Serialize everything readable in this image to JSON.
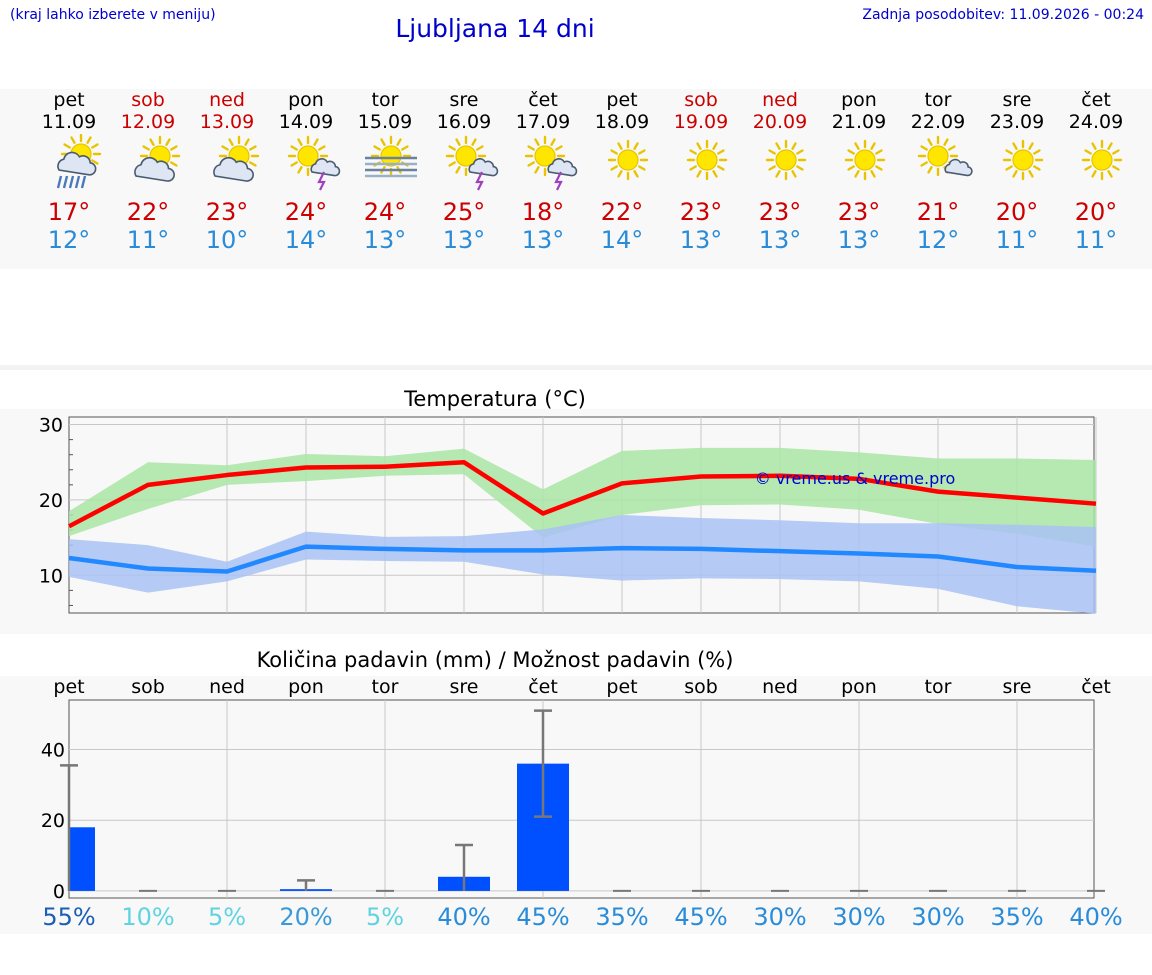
{
  "header": {
    "hint": "(kraj lahko izberete v meniju)",
    "title": "Ljubljana 14 dni",
    "updated": "Zadnja posodobitev: 11.09.2026 - 00:24"
  },
  "colors": {
    "accent_blue": "#0000cc",
    "max_red": "#cc0000",
    "min_blue": "#2a8cd8",
    "max_line": "#ff0000",
    "min_line": "#2288ff",
    "max_band": "#a9e6a5",
    "min_band": "#a9c2f4",
    "bar": "#0050ff"
  },
  "days": [
    {
      "name": "pet",
      "date": "11.09",
      "weekend": false,
      "icon": "sun-cloud-rain-icon",
      "max": "17°",
      "min": "12°"
    },
    {
      "name": "sob",
      "date": "12.09",
      "weekend": true,
      "icon": "sun-cloud-icon",
      "max": "22°",
      "min": "11°"
    },
    {
      "name": "ned",
      "date": "13.09",
      "weekend": true,
      "icon": "sun-cloud-icon",
      "max": "23°",
      "min": "10°"
    },
    {
      "name": "pon",
      "date": "14.09",
      "weekend": false,
      "icon": "sun-thunder-icon",
      "max": "24°",
      "min": "14°"
    },
    {
      "name": "tor",
      "date": "15.09",
      "weekend": false,
      "icon": "sun-fog-icon",
      "max": "24°",
      "min": "13°"
    },
    {
      "name": "sre",
      "date": "16.09",
      "weekend": false,
      "icon": "sun-thunder-icon",
      "max": "25°",
      "min": "13°"
    },
    {
      "name": "čet",
      "date": "17.09",
      "weekend": false,
      "icon": "sun-thunder-icon",
      "max": "18°",
      "min": "13°"
    },
    {
      "name": "pet",
      "date": "18.09",
      "weekend": false,
      "icon": "sun-icon",
      "max": "22°",
      "min": "14°"
    },
    {
      "name": "sob",
      "date": "19.09",
      "weekend": true,
      "icon": "sun-icon",
      "max": "23°",
      "min": "13°"
    },
    {
      "name": "ned",
      "date": "20.09",
      "weekend": true,
      "icon": "sun-icon",
      "max": "23°",
      "min": "13°"
    },
    {
      "name": "pon",
      "date": "21.09",
      "weekend": false,
      "icon": "sun-icon",
      "max": "23°",
      "min": "13°"
    },
    {
      "name": "tor",
      "date": "22.09",
      "weekend": false,
      "icon": "sun-small-cloud-icon",
      "max": "21°",
      "min": "12°"
    },
    {
      "name": "sre",
      "date": "23.09",
      "weekend": false,
      "icon": "sun-icon",
      "max": "20°",
      "min": "11°"
    },
    {
      "name": "čet",
      "date": "24.09",
      "weekend": false,
      "icon": "sun-icon",
      "max": "20°",
      "min": "11°"
    }
  ],
  "chart_data": [
    {
      "type": "line",
      "title": "Temperatura (°C)",
      "watermark": "© vreme.us & vreme.pro",
      "ylim": [
        5,
        31
      ],
      "yticks": [
        10,
        20,
        30
      ],
      "grid": true,
      "x_count": 14,
      "series": [
        {
          "key": "max",
          "values": [
            16.5,
            22.0,
            23.3,
            24.3,
            24.4,
            25.0,
            18.2,
            22.2,
            23.1,
            23.2,
            22.8,
            21.1,
            20.3,
            19.5
          ],
          "band_high": [
            18.5,
            25.0,
            24.6,
            26.1,
            25.8,
            26.8,
            21.4,
            26.5,
            26.9,
            26.9,
            26.3,
            25.5,
            25.5,
            25.3
          ],
          "band_low": [
            15.2,
            18.8,
            22.0,
            22.5,
            23.2,
            23.4,
            15.0,
            18.0,
            19.3,
            19.4,
            18.7,
            16.8,
            15.5,
            13.8
          ]
        },
        {
          "key": "min",
          "values": [
            12.3,
            10.9,
            10.5,
            13.8,
            13.5,
            13.3,
            13.3,
            13.6,
            13.5,
            13.2,
            12.9,
            12.5,
            11.1,
            10.6
          ],
          "band_high": [
            14.8,
            14.0,
            11.8,
            15.8,
            15.1,
            15.2,
            16.1,
            18.0,
            17.6,
            17.3,
            16.9,
            16.9,
            16.7,
            16.4
          ],
          "band_low": [
            9.8,
            7.7,
            9.2,
            12.1,
            11.9,
            11.8,
            10.1,
            9.3,
            9.6,
            9.5,
            9.2,
            8.2,
            5.9,
            4.9
          ]
        }
      ]
    },
    {
      "type": "bar",
      "title": "Količina padavin (mm) / Možnost padavin (%)",
      "ylim": [
        -2,
        54
      ],
      "yticks": [
        0,
        20,
        40
      ],
      "grid": true,
      "categories": [
        "pet",
        "sob",
        "ned",
        "pon",
        "tor",
        "sre",
        "čet",
        "pet",
        "sob",
        "ned",
        "pon",
        "tor",
        "sre",
        "čet"
      ],
      "values": [
        18,
        0,
        0,
        0.5,
        0,
        4,
        36,
        0,
        0,
        0,
        0,
        0,
        0,
        0
      ],
      "err_high": [
        35.5,
        0,
        0,
        3,
        0,
        13,
        51,
        0,
        0,
        0,
        0,
        0,
        0,
        0
      ],
      "err_low": [
        0,
        0,
        0,
        0,
        0,
        0,
        21,
        0,
        0,
        0,
        0,
        0,
        0,
        0
      ],
      "probability": [
        "55%",
        "10%",
        "5%",
        "20%",
        "5%",
        "40%",
        "45%",
        "35%",
        "45%",
        "30%",
        "30%",
        "30%",
        "35%",
        "40%"
      ],
      "probability_colors": [
        "#1a5fb4",
        "#5fd3e0",
        "#5fd3e0",
        "#3a9ad9",
        "#5fd3e0",
        "#2a8cd8",
        "#2a8cd8",
        "#2a8cd8",
        "#2a8cd8",
        "#2a8cd8",
        "#2a8cd8",
        "#2a8cd8",
        "#2a8cd8",
        "#2a8cd8"
      ]
    }
  ]
}
